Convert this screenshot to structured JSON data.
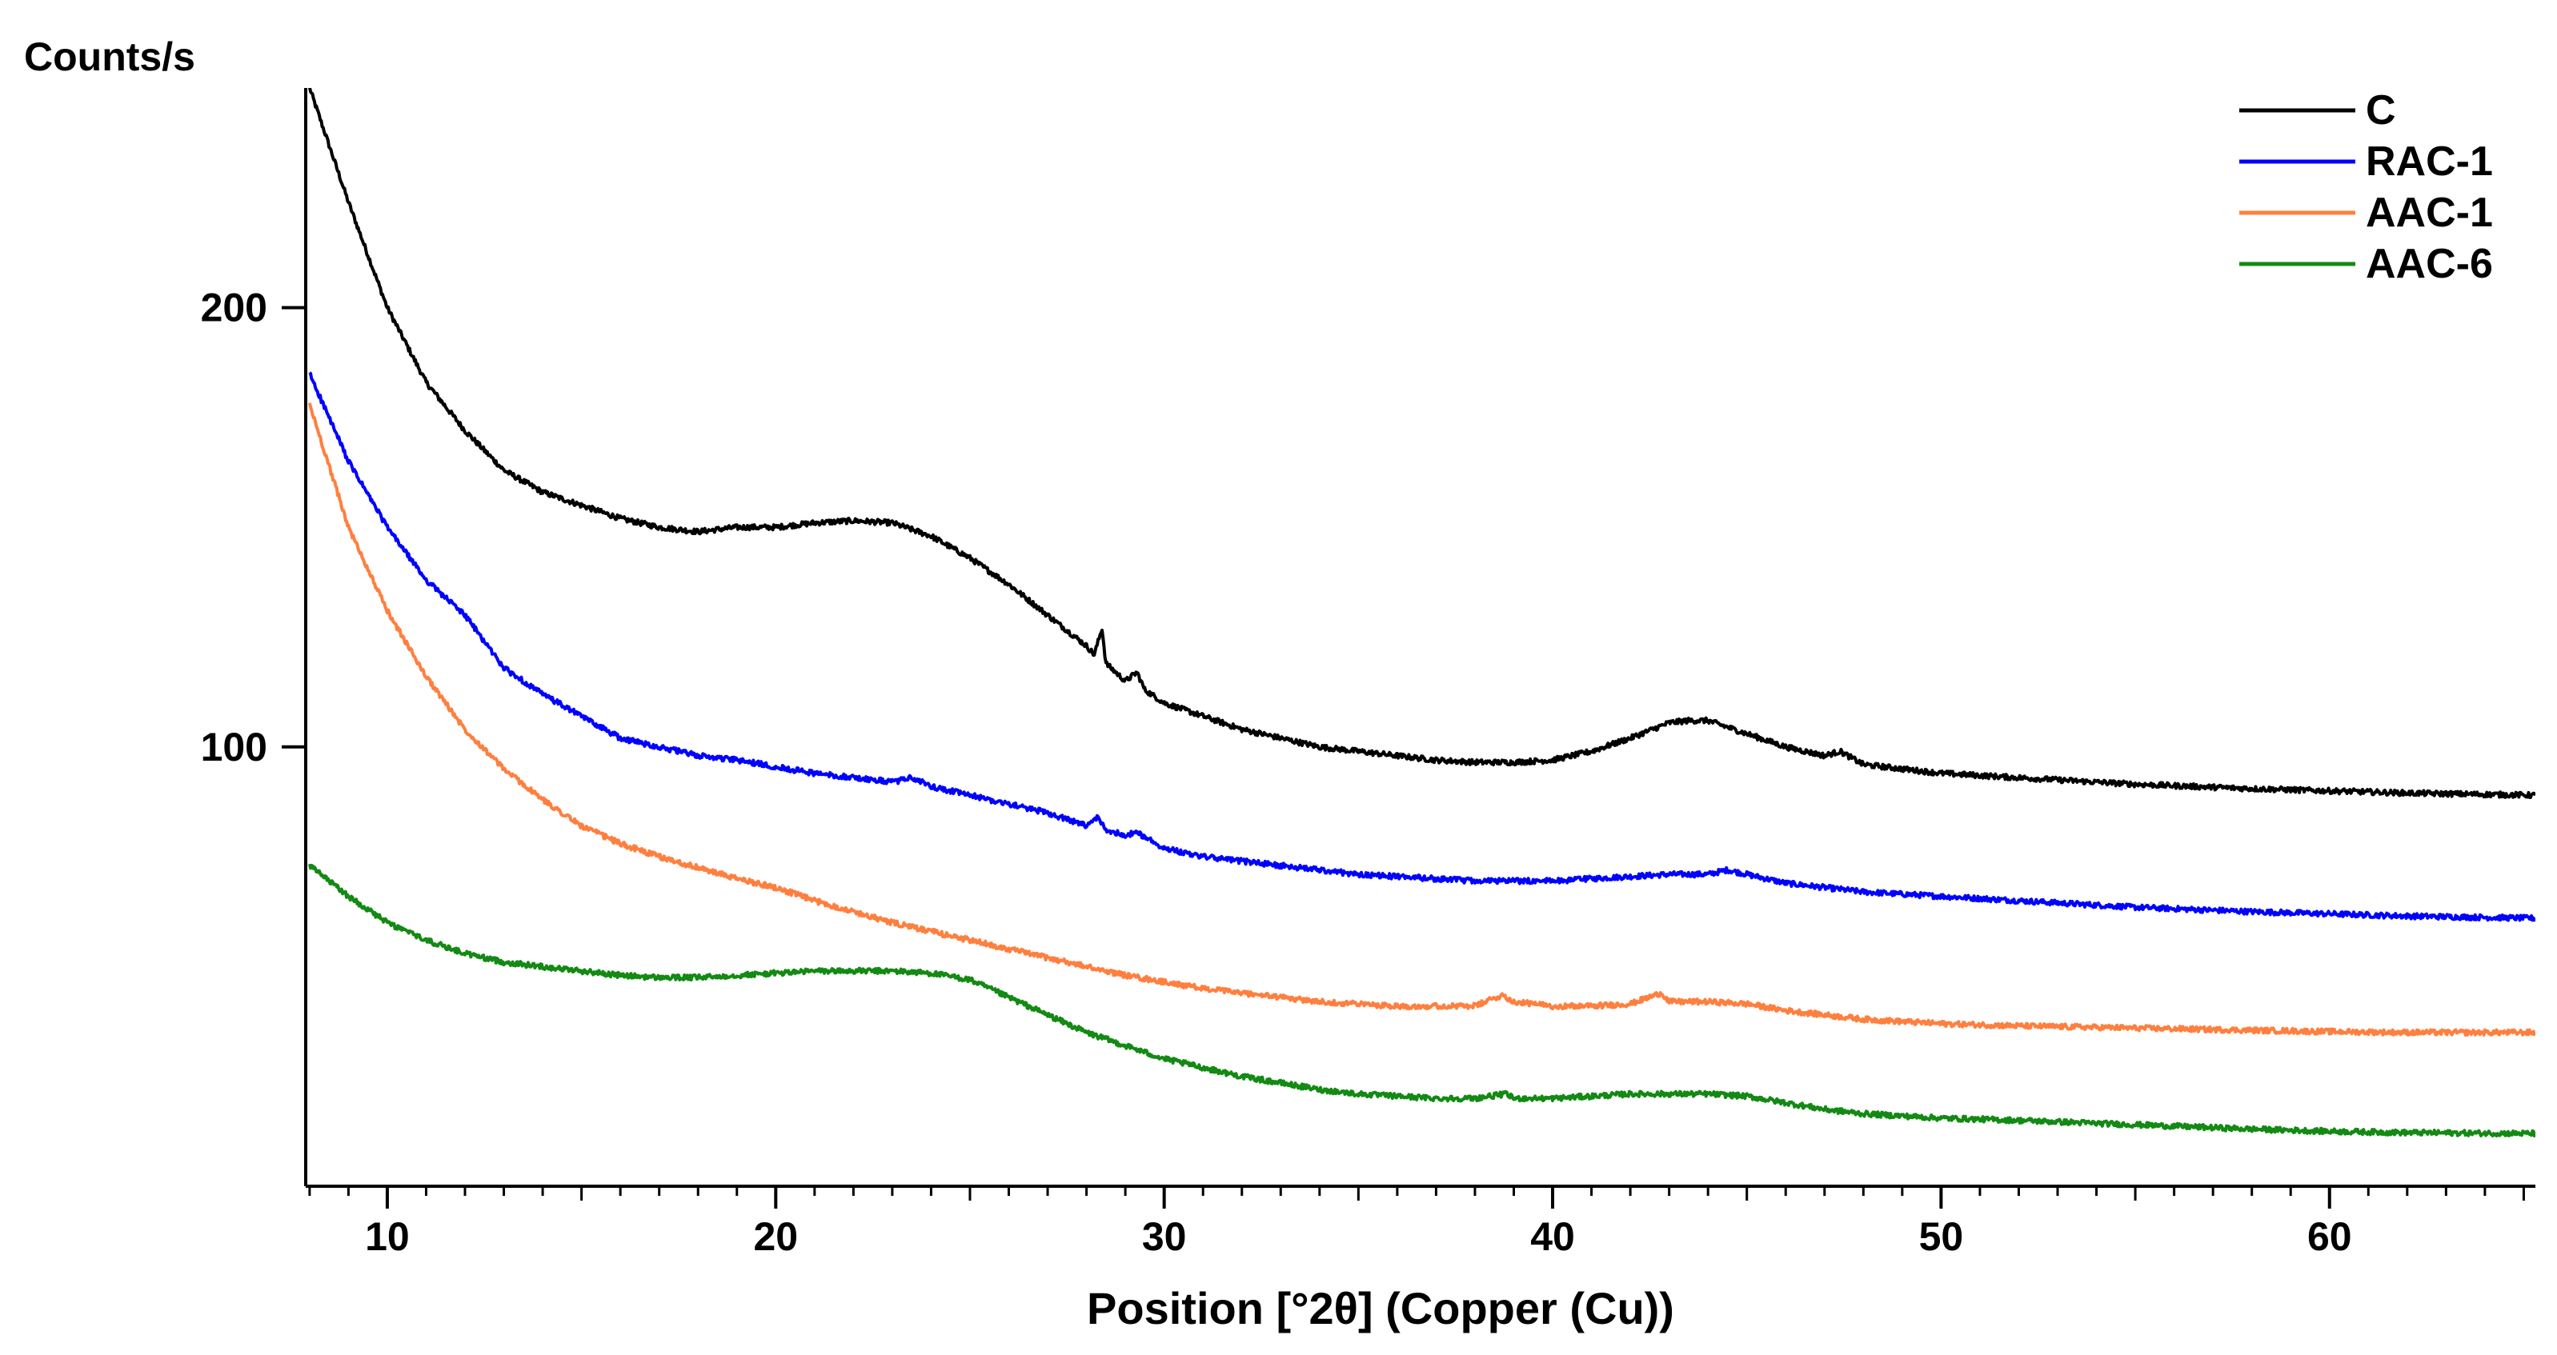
{
  "chart_data": {
    "type": "line",
    "title": "",
    "ylabel": "Counts/s",
    "xlabel": "Position [°2θ] (Copper (Cu))",
    "xlim": [
      7.9,
      65.3
    ],
    "ylim": [
      0,
      250
    ],
    "x_ticks": [
      10,
      20,
      30,
      40,
      50,
      60
    ],
    "y_ticks": [
      100,
      200
    ],
    "legend_position": "top-right",
    "grid": false,
    "series": [
      {
        "name": "C",
        "color": "#000000",
        "points": [
          [
            8,
            250
          ],
          [
            9,
            224
          ],
          [
            10,
            200
          ],
          [
            11,
            183
          ],
          [
            12,
            172
          ],
          [
            13,
            163
          ],
          [
            14,
            158
          ],
          [
            15,
            155
          ],
          [
            16,
            152
          ],
          [
            17,
            150
          ],
          [
            18,
            149
          ],
          [
            19,
            150
          ],
          [
            20,
            150
          ],
          [
            21,
            151
          ],
          [
            22,
            151.5
          ],
          [
            23,
            151
          ],
          [
            24,
            148
          ],
          [
            25,
            143
          ],
          [
            26,
            137
          ],
          [
            27,
            130
          ],
          [
            28,
            123
          ],
          [
            28.2,
            121
          ],
          [
            28.4,
            127
          ],
          [
            28.5,
            119
          ],
          [
            29,
            115
          ],
          [
            29.3,
            117
          ],
          [
            29.5,
            113
          ],
          [
            30,
            110
          ],
          [
            31,
            107
          ],
          [
            32,
            104
          ],
          [
            33,
            102
          ],
          [
            34,
            100
          ],
          [
            35,
            99
          ],
          [
            36,
            98
          ],
          [
            37,
            97
          ],
          [
            38,
            96.5
          ],
          [
            39,
            96.5
          ],
          [
            40,
            97
          ],
          [
            41,
            99
          ],
          [
            42,
            102
          ],
          [
            43,
            105.5
          ],
          [
            43.5,
            106
          ],
          [
            44,
            106
          ],
          [
            45,
            103
          ],
          [
            46,
            100
          ],
          [
            47,
            98
          ],
          [
            47.4,
            99
          ],
          [
            48,
            96
          ],
          [
            50,
            94
          ],
          [
            52,
            93
          ],
          [
            55,
            91.5
          ],
          [
            58,
            90.5
          ],
          [
            60,
            90
          ],
          [
            62,
            89.5
          ],
          [
            65.3,
            89
          ]
        ]
      },
      {
        "name": "RAC-1",
        "color": "#0000ff",
        "points": [
          [
            8,
            185
          ],
          [
            9,
            165
          ],
          [
            10,
            150
          ],
          [
            11,
            138
          ],
          [
            12,
            130
          ],
          [
            12.5,
            124
          ],
          [
            13,
            118
          ],
          [
            14,
            112
          ],
          [
            15,
            107
          ],
          [
            16,
            102
          ],
          [
            17,
            100
          ],
          [
            18,
            98
          ],
          [
            19,
            97
          ],
          [
            20,
            95.5
          ],
          [
            21,
            94
          ],
          [
            22,
            93
          ],
          [
            23,
            92
          ],
          [
            23.5,
            93
          ],
          [
            24,
            91
          ],
          [
            25,
            89
          ],
          [
            26,
            87
          ],
          [
            27,
            85
          ],
          [
            28,
            82
          ],
          [
            28.3,
            84
          ],
          [
            28.5,
            81
          ],
          [
            29,
            80
          ],
          [
            29.3,
            80.5
          ],
          [
            30,
            77
          ],
          [
            31,
            75
          ],
          [
            32,
            74
          ],
          [
            33,
            73
          ],
          [
            34,
            72
          ],
          [
            35,
            71
          ],
          [
            36,
            70.5
          ],
          [
            37,
            70
          ],
          [
            38,
            69.5
          ],
          [
            39,
            69.5
          ],
          [
            40,
            69.5
          ],
          [
            41,
            70
          ],
          [
            42,
            70.5
          ],
          [
            43,
            71
          ],
          [
            44,
            71
          ],
          [
            44.5,
            72
          ],
          [
            45,
            71
          ],
          [
            46,
            69
          ],
          [
            47,
            68
          ],
          [
            48,
            67
          ],
          [
            50,
            66
          ],
          [
            52,
            65
          ],
          [
            55,
            63.5
          ],
          [
            58,
            62.5
          ],
          [
            60,
            62
          ],
          [
            62,
            61.5
          ],
          [
            65.3,
            61
          ]
        ]
      },
      {
        "name": "AAC-1",
        "color": "#ff7f3f",
        "points": [
          [
            8,
            178
          ],
          [
            9,
            150
          ],
          [
            10,
            131
          ],
          [
            11,
            116
          ],
          [
            12,
            104
          ],
          [
            13,
            95
          ],
          [
            14,
            88
          ],
          [
            15,
            82
          ],
          [
            16,
            78
          ],
          [
            17,
            75
          ],
          [
            18,
            72.5
          ],
          [
            19,
            70
          ],
          [
            20,
            68
          ],
          [
            21,
            65
          ],
          [
            22,
            62.5
          ],
          [
            23,
            60
          ],
          [
            24,
            58
          ],
          [
            25,
            56
          ],
          [
            26,
            54
          ],
          [
            27,
            52
          ],
          [
            28,
            50
          ],
          [
            29,
            48
          ],
          [
            30,
            46.5
          ],
          [
            31,
            45
          ],
          [
            32,
            44
          ],
          [
            33,
            43
          ],
          [
            34,
            42
          ],
          [
            35,
            41.5
          ],
          [
            36,
            41
          ],
          [
            37,
            41
          ],
          [
            38,
            41
          ],
          [
            38.7,
            43.5
          ],
          [
            39,
            42
          ],
          [
            40,
            41
          ],
          [
            41,
            41
          ],
          [
            42,
            41.5
          ],
          [
            42.8,
            44
          ],
          [
            43,
            42
          ],
          [
            44,
            42
          ],
          [
            45,
            41.5
          ],
          [
            46,
            40
          ],
          [
            47,
            39
          ],
          [
            48,
            38
          ],
          [
            50,
            37
          ],
          [
            52,
            36.5
          ],
          [
            55,
            36
          ],
          [
            58,
            35.5
          ],
          [
            60,
            35.2
          ],
          [
            62,
            35
          ],
          [
            65.3,
            35
          ]
        ]
      },
      {
        "name": "AAC-6",
        "color": "#138a13",
        "points": [
          [
            8,
            73
          ],
          [
            9,
            66
          ],
          [
            10,
            60
          ],
          [
            11,
            56
          ],
          [
            12,
            53
          ],
          [
            13,
            51
          ],
          [
            14,
            50
          ],
          [
            15,
            49
          ],
          [
            16,
            48
          ],
          [
            17,
            47.5
          ],
          [
            18,
            47.5
          ],
          [
            19,
            48
          ],
          [
            20,
            48.5
          ],
          [
            21,
            49
          ],
          [
            22,
            49
          ],
          [
            23,
            49
          ],
          [
            24,
            48.5
          ],
          [
            25,
            47
          ],
          [
            26,
            43
          ],
          [
            27,
            39
          ],
          [
            28,
            35
          ],
          [
            29,
            32
          ],
          [
            30,
            29
          ],
          [
            31,
            27
          ],
          [
            32,
            25
          ],
          [
            33,
            23.5
          ],
          [
            34,
            22
          ],
          [
            35,
            21
          ],
          [
            36,
            20.5
          ],
          [
            37,
            20
          ],
          [
            38,
            20
          ],
          [
            38.8,
            21
          ],
          [
            39,
            20
          ],
          [
            40,
            20
          ],
          [
            41,
            20.5
          ],
          [
            42,
            21
          ],
          [
            43,
            21
          ],
          [
            44,
            21
          ],
          [
            45,
            20.5
          ],
          [
            46,
            19
          ],
          [
            47,
            17.5
          ],
          [
            48,
            16.5
          ],
          [
            50,
            15.5
          ],
          [
            52,
            15
          ],
          [
            55,
            14
          ],
          [
            58,
            13
          ],
          [
            60,
            12.5
          ],
          [
            62,
            12.2
          ],
          [
            65.3,
            12
          ]
        ]
      }
    ]
  }
}
